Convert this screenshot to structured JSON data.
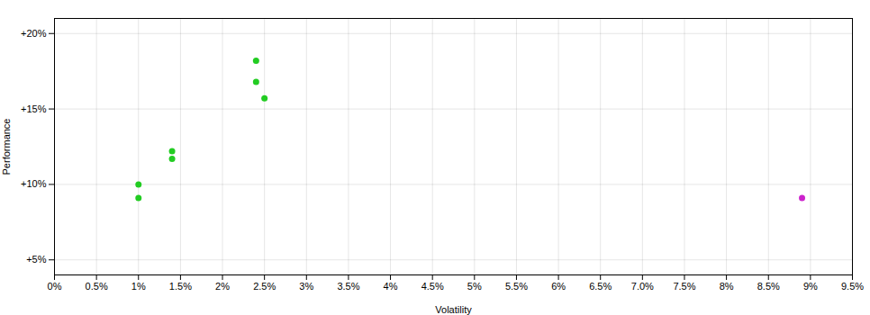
{
  "chart_data": {
    "type": "scatter",
    "xlabel": "Volatility",
    "ylabel": "Performance",
    "xlim": [
      0.0,
      0.095
    ],
    "ylim": [
      0.04,
      0.21
    ],
    "xticks": [
      {
        "value": 0.0,
        "label": "0%"
      },
      {
        "value": 0.005,
        "label": "0.5%"
      },
      {
        "value": 0.01,
        "label": "1%"
      },
      {
        "value": 0.015,
        "label": "1.5%"
      },
      {
        "value": 0.02,
        "label": "2%"
      },
      {
        "value": 0.025,
        "label": "2.5%"
      },
      {
        "value": 0.03,
        "label": "3%"
      },
      {
        "value": 0.035,
        "label": "3.5%"
      },
      {
        "value": 0.04,
        "label": "4%"
      },
      {
        "value": 0.045,
        "label": "4.5%"
      },
      {
        "value": 0.05,
        "label": "5%"
      },
      {
        "value": 0.055,
        "label": "5.5%"
      },
      {
        "value": 0.06,
        "label": "6%"
      },
      {
        "value": 0.065,
        "label": "6.5%"
      },
      {
        "value": 0.07,
        "label": "7.0%"
      },
      {
        "value": 0.075,
        "label": "7.5%"
      },
      {
        "value": 0.08,
        "label": "8%"
      },
      {
        "value": 0.085,
        "label": "8.5%"
      },
      {
        "value": 0.09,
        "label": "9%"
      },
      {
        "value": 0.095,
        "label": "9.5%"
      }
    ],
    "yticks": [
      {
        "value": 0.05,
        "label": "+5%"
      },
      {
        "value": 0.1,
        "label": "+10%"
      },
      {
        "value": 0.15,
        "label": "+15%"
      },
      {
        "value": 0.2,
        "label": "+20%"
      }
    ],
    "grid": true,
    "series": [
      {
        "color": "#22cc22",
        "x": [
          0.01,
          0.01,
          0.014,
          0.014,
          0.024,
          0.024,
          0.025
        ],
        "y": [
          0.1,
          0.091,
          0.122,
          0.117,
          0.182,
          0.168,
          0.157
        ]
      },
      {
        "color": "#cc22cc",
        "x": [
          0.089
        ],
        "y": [
          0.091
        ]
      }
    ]
  }
}
